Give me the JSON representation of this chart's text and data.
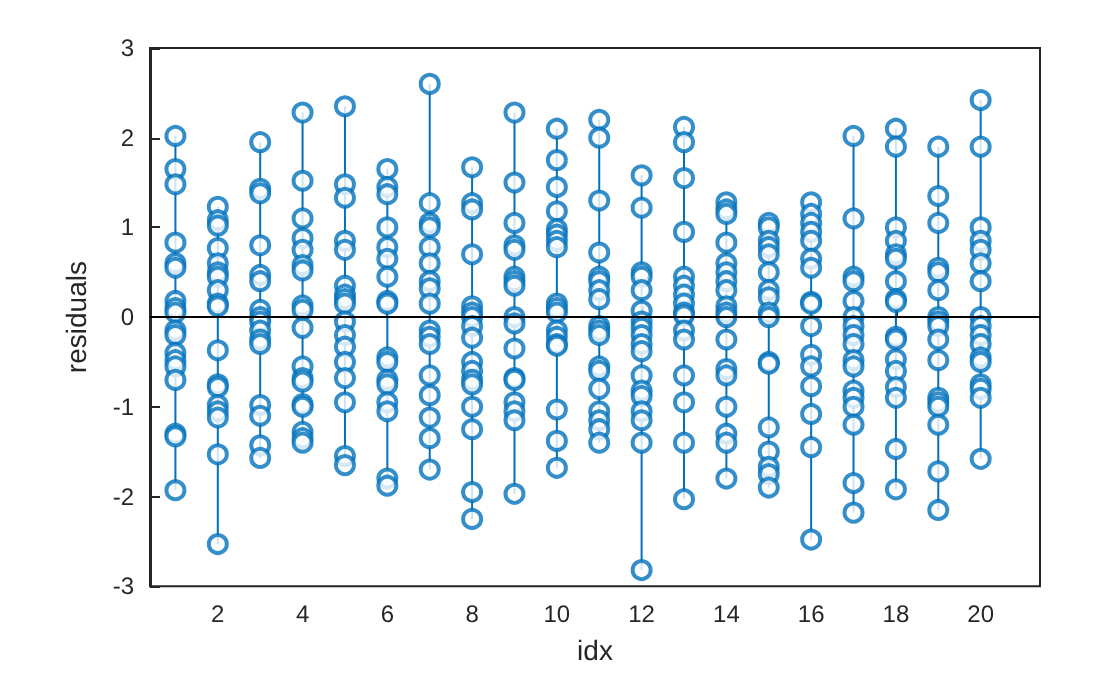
{
  "chart_data": {
    "type": "scatter",
    "xlabel": "idx",
    "ylabel": "residuals",
    "xlim": [
      0.4,
      21.4
    ],
    "xticks": [
      2,
      4,
      6,
      8,
      10,
      12,
      14,
      16,
      18,
      20
    ],
    "ylim": [
      -3,
      3
    ],
    "yticks": [
      -3,
      -2,
      -1,
      0,
      1,
      2,
      3
    ],
    "grid": false,
    "marker": "circle",
    "ref_lines": [
      {
        "axis": "y",
        "value": 0,
        "color": "#000000"
      }
    ],
    "series": [
      {
        "type": "line",
        "marker": "none",
        "color": "#0072bd",
        "x": [
          1,
          1
        ],
        "values": [
          -1.93,
          2.02
        ]
      },
      {
        "type": "line",
        "marker": "none",
        "color": "#0072bd",
        "x": [
          2,
          2
        ],
        "values": [
          -2.53,
          1.23
        ]
      },
      {
        "type": "line",
        "marker": "none",
        "color": "#0072bd",
        "x": [
          3,
          3
        ],
        "values": [
          -1.57,
          1.95
        ]
      },
      {
        "type": "line",
        "marker": "none",
        "color": "#0072bd",
        "x": [
          4,
          4
        ],
        "values": [
          -1.4,
          2.28
        ]
      },
      {
        "type": "line",
        "marker": "none",
        "color": "#0072bd",
        "x": [
          5,
          5
        ],
        "values": [
          -1.65,
          2.35
        ]
      },
      {
        "type": "line",
        "marker": "none",
        "color": "#0072bd",
        "x": [
          6,
          6
        ],
        "values": [
          -1.88,
          1.65
        ]
      },
      {
        "type": "line",
        "marker": "none",
        "color": "#0072bd",
        "x": [
          7,
          7
        ],
        "values": [
          -1.7,
          2.6
        ]
      },
      {
        "type": "line",
        "marker": "none",
        "color": "#0072bd",
        "x": [
          8,
          8
        ],
        "values": [
          -2.25,
          1.67
        ]
      },
      {
        "type": "line",
        "marker": "none",
        "color": "#0072bd",
        "x": [
          9,
          9
        ],
        "values": [
          -1.97,
          2.28
        ]
      },
      {
        "type": "line",
        "marker": "none",
        "color": "#0072bd",
        "x": [
          10,
          10
        ],
        "values": [
          -1.68,
          2.1
        ]
      },
      {
        "type": "line",
        "marker": "none",
        "color": "#0072bd",
        "x": [
          11,
          11
        ],
        "values": [
          -1.4,
          2.2
        ]
      },
      {
        "type": "line",
        "marker": "none",
        "color": "#0072bd",
        "x": [
          12,
          12
        ],
        "values": [
          -2.82,
          1.58
        ]
      },
      {
        "type": "line",
        "marker": "none",
        "color": "#0072bd",
        "x": [
          13,
          13
        ],
        "values": [
          -2.03,
          2.12
        ]
      },
      {
        "type": "line",
        "marker": "none",
        "color": "#0072bd",
        "x": [
          14,
          14
        ],
        "values": [
          -1.8,
          1.28
        ]
      },
      {
        "type": "line",
        "marker": "none",
        "color": "#0072bd",
        "x": [
          15,
          15
        ],
        "values": [
          -1.9,
          1.05
        ]
      },
      {
        "type": "line",
        "marker": "none",
        "color": "#0072bd",
        "x": [
          16,
          16
        ],
        "values": [
          -2.48,
          1.28
        ]
      },
      {
        "type": "line",
        "marker": "none",
        "color": "#0072bd",
        "x": [
          17,
          17
        ],
        "values": [
          -2.18,
          2.02
        ]
      },
      {
        "type": "line",
        "marker": "none",
        "color": "#0072bd",
        "x": [
          18,
          18
        ],
        "values": [
          -1.92,
          2.1
        ]
      },
      {
        "type": "line",
        "marker": "none",
        "color": "#0072bd",
        "x": [
          19,
          19
        ],
        "values": [
          -2.15,
          1.9
        ]
      },
      {
        "type": "line",
        "marker": "none",
        "color": "#0072bd",
        "x": [
          20,
          20
        ],
        "values": [
          -1.58,
          2.42
        ]
      },
      {
        "color": "#0072bd",
        "x": [
          1,
          1,
          1,
          1,
          1,
          1,
          1,
          1,
          1,
          1,
          1,
          1,
          1,
          1,
          1,
          1,
          1,
          1,
          2,
          2,
          2,
          2,
          2,
          2,
          2,
          2,
          2,
          2,
          2,
          2,
          2,
          2,
          2,
          2,
          2,
          2,
          3,
          3,
          3,
          3,
          3,
          3,
          3,
          3,
          3,
          3,
          3,
          3,
          3,
          3,
          3,
          3,
          4,
          4,
          4,
          4,
          4,
          4,
          4,
          4,
          4,
          4,
          4,
          4,
          4,
          4,
          4,
          4,
          4,
          4,
          5,
          5,
          5,
          5,
          5,
          5,
          5,
          5,
          5,
          5,
          5,
          5,
          5,
          5,
          5,
          5,
          5,
          6,
          6,
          6,
          6,
          6,
          6,
          6,
          6,
          6,
          6,
          6,
          6,
          6,
          6,
          6,
          6,
          6,
          7,
          7,
          7,
          7,
          7,
          7,
          7,
          7,
          7,
          7,
          7,
          7,
          7,
          7,
          7,
          7,
          7,
          8,
          8,
          8,
          8,
          8,
          8,
          8,
          8,
          8,
          8,
          8,
          8,
          8,
          8,
          8,
          8,
          8,
          9,
          9,
          9,
          9,
          9,
          9,
          9,
          9,
          9,
          9,
          9,
          9,
          9,
          9,
          9,
          9,
          9,
          10,
          10,
          10,
          10,
          10,
          10,
          10,
          10,
          10,
          10,
          10,
          10,
          10,
          10,
          10,
          10,
          10,
          10,
          11,
          11,
          11,
          11,
          11,
          11,
          11,
          11,
          11,
          11,
          11,
          11,
          11,
          11,
          11,
          11,
          11,
          11,
          12,
          12,
          12,
          12,
          12,
          12,
          12,
          12,
          12,
          12,
          12,
          12,
          12,
          12,
          12,
          12,
          12,
          12,
          13,
          13,
          13,
          13,
          13,
          13,
          13,
          13,
          13,
          13,
          13,
          13,
          13,
          13,
          13,
          13,
          14,
          14,
          14,
          14,
          14,
          14,
          14,
          14,
          14,
          14,
          14,
          14,
          14,
          14,
          14,
          14,
          14,
          14,
          15,
          15,
          15,
          15,
          15,
          15,
          15,
          15,
          15,
          15,
          15,
          15,
          15,
          15,
          15,
          15,
          15,
          16,
          16,
          16,
          16,
          16,
          16,
          16,
          16,
          16,
          16,
          16,
          16,
          16,
          16,
          16,
          16,
          17,
          17,
          17,
          17,
          17,
          17,
          17,
          17,
          17,
          17,
          17,
          17,
          17,
          17,
          17,
          17,
          17,
          18,
          18,
          18,
          18,
          18,
          18,
          18,
          18,
          18,
          18,
          18,
          18,
          18,
          18,
          18,
          18,
          18,
          19,
          19,
          19,
          19,
          19,
          19,
          19,
          19,
          19,
          19,
          19,
          19,
          19,
          19,
          19,
          19,
          19,
          20,
          20,
          20,
          20,
          20,
          20,
          20,
          20,
          20,
          20,
          20,
          20,
          20,
          20,
          20,
          20,
          20
        ],
        "values": [
          2.02,
          1.65,
          1.48,
          0.83,
          0.6,
          0.55,
          0.18,
          0.1,
          0.05,
          -0.15,
          -0.2,
          -0.4,
          -0.48,
          -0.55,
          -0.7,
          -1.3,
          -1.33,
          -1.93,
          1.23,
          1.08,
          1.02,
          0.77,
          0.6,
          0.5,
          0.45,
          0.3,
          0.15,
          0.12,
          -0.37,
          -0.75,
          -0.78,
          -0.98,
          -1.05,
          -1.12,
          -1.53,
          -2.53,
          1.95,
          1.43,
          1.38,
          0.8,
          0.47,
          0.4,
          0.08,
          0,
          -0.05,
          -0.15,
          -0.25,
          -0.3,
          -0.98,
          -1.1,
          -1.43,
          -1.57,
          2.28,
          1.52,
          1.1,
          0.88,
          0.75,
          0.58,
          0.52,
          0.13,
          0.08,
          -0.12,
          -0.55,
          -0.68,
          -0.72,
          -0.97,
          -1.0,
          -1.28,
          -1.35,
          -1.4,
          2.35,
          1.48,
          1.33,
          0.85,
          0.75,
          0.35,
          0.25,
          0.2,
          0.15,
          -0.05,
          -0.2,
          -0.33,
          -0.5,
          -0.68,
          -0.95,
          -1.55,
          -1.65,
          1.65,
          1.45,
          1.37,
          1.0,
          0.78,
          0.65,
          0.45,
          0.18,
          0.15,
          -0.45,
          -0.5,
          -0.7,
          -0.75,
          -0.95,
          -1.05,
          -1.8,
          -1.88,
          2.6,
          1.27,
          1.05,
          1.0,
          0.78,
          0.6,
          0.4,
          0.32,
          0.15,
          -0.15,
          -0.22,
          -0.3,
          -0.65,
          -0.87,
          -1.12,
          -1.35,
          -1.7,
          1.67,
          1.27,
          1.2,
          0.7,
          0.12,
          0.05,
          0,
          -0.1,
          -0.23,
          -0.5,
          -0.6,
          -0.7,
          -0.75,
          -1.0,
          -1.25,
          -1.95,
          -2.25,
          2.28,
          1.5,
          1.05,
          0.8,
          0.75,
          0.45,
          0.4,
          0.35,
          0,
          -0.07,
          -0.35,
          -0.68,
          -0.7,
          -0.95,
          -1.05,
          -1.15,
          -1.97,
          2.1,
          1.75,
          1.45,
          1.18,
          0.98,
          0.92,
          0.85,
          0.78,
          0.15,
          0.1,
          0.05,
          -0.15,
          -0.22,
          -0.3,
          -0.32,
          -1.03,
          -1.38,
          -1.68,
          2.2,
          2.0,
          1.3,
          0.72,
          0.45,
          0.4,
          0.3,
          0.2,
          -0.1,
          -0.15,
          -0.2,
          -0.55,
          -0.6,
          -0.8,
          -1.05,
          -1.15,
          -1.25,
          -1.4,
          1.58,
          1.22,
          0.5,
          0.45,
          0.3,
          0.07,
          -0.05,
          -0.12,
          -0.2,
          -0.3,
          -0.38,
          -0.65,
          -0.82,
          -0.88,
          -1.05,
          -1.15,
          -1.4,
          -2.82,
          2.12,
          1.95,
          1.55,
          0.95,
          0.45,
          0.35,
          0.25,
          0.15,
          0.05,
          0.02,
          -0.15,
          -0.25,
          -0.65,
          -0.95,
          -1.4,
          -2.03,
          1.28,
          1.2,
          1.15,
          0.83,
          0.6,
          0.5,
          0.4,
          0.3,
          0.12,
          0.05,
          0,
          -0.25,
          -0.58,
          -0.65,
          -1.0,
          -1.3,
          -1.4,
          -1.8,
          1.05,
          1.0,
          0.85,
          0.78,
          0.7,
          0.5,
          0.3,
          0.22,
          0.05,
          0,
          -0.5,
          -0.52,
          -1.23,
          -1.5,
          -1.67,
          -1.75,
          -1.9,
          1.28,
          1.15,
          1.05,
          0.95,
          0.85,
          0.65,
          0.55,
          0.17,
          0.15,
          -0.1,
          -0.42,
          -0.55,
          -0.77,
          -1.08,
          -1.45,
          -2.48,
          2.02,
          1.1,
          0.45,
          0.4,
          0.18,
          0,
          -0.1,
          -0.2,
          -0.3,
          -0.48,
          -0.55,
          -0.82,
          -0.9,
          -1.0,
          -1.2,
          -1.85,
          -2.18,
          2.1,
          1.9,
          1.0,
          0.85,
          0.7,
          0.65,
          0.4,
          0.2,
          0.17,
          -0.22,
          -0.25,
          -0.47,
          -0.6,
          -0.78,
          -0.9,
          -1.47,
          -1.92,
          1.9,
          1.35,
          1.05,
          0.55,
          0.5,
          0.3,
          0,
          -0.05,
          -0.1,
          -0.25,
          -0.48,
          -0.9,
          -0.95,
          -1.0,
          -1.2,
          -1.72,
          -2.15,
          2.42,
          1.9,
          1.0,
          0.85,
          0.75,
          0.6,
          0.4,
          0,
          -0.1,
          -0.2,
          -0.3,
          -0.45,
          -0.5,
          -0.75,
          -0.8,
          -0.9,
          -1.58
        ]
      }
    ]
  }
}
